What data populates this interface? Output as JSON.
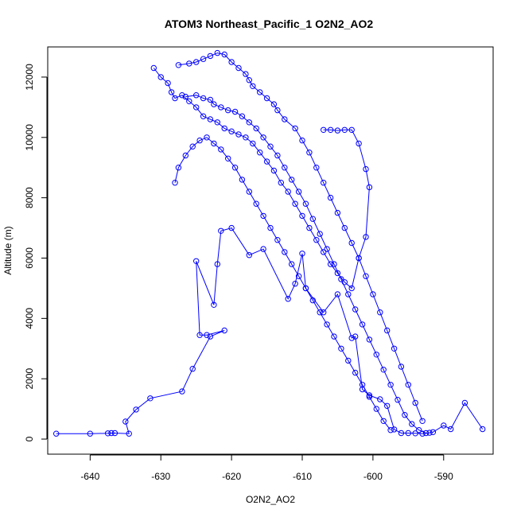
{
  "chart_data": {
    "type": "line",
    "title": "ATOM3 Northeast_Pacific_1 O2N2_AO2",
    "xlabel": "O2N2_AO2",
    "ylabel": "Altitude (m)",
    "xlim": [
      -646,
      -583
    ],
    "ylim": [
      -500,
      13000
    ],
    "xticks": [
      -640,
      -630,
      -620,
      -610,
      -600,
      -590
    ],
    "yticks": [
      0,
      2000,
      4000,
      6000,
      8000,
      10000,
      12000
    ],
    "grid": false,
    "legend": "none",
    "series": [
      {
        "color": "#0000ff",
        "marker": "open-circle",
        "x": [
          -644.8,
          -640.0,
          -637.5,
          -637.0,
          -636.5,
          -634.5,
          -635.0,
          -633.5,
          -631.5,
          -627.0,
          -625.5,
          -623.0,
          -621.0,
          -623.5,
          -624.5,
          -625.0,
          -622.5,
          -622.0,
          -621.5,
          -620.0,
          -617.5,
          -615.5,
          -612.0,
          -611.0,
          -610.0,
          -609.5,
          -607.0,
          -605.0,
          -603.0,
          -602.5,
          -601.5,
          -600.5,
          -599.0,
          -598.0,
          -597.0,
          -596.0,
          -595.0,
          -594.0,
          -593.0,
          -592.0,
          -591.5,
          -590.0,
          -589.0,
          -587.0,
          -584.5
        ],
        "y": [
          180,
          180,
          190,
          200,
          200,
          180,
          580,
          980,
          1350,
          1580,
          2330,
          3400,
          3600,
          3450,
          3450,
          5900,
          4450,
          5800,
          6900,
          7000,
          6100,
          6300,
          4650,
          5150,
          6150,
          5000,
          4200,
          4800,
          3350,
          3400,
          1650,
          1450,
          1320,
          1100,
          320,
          200,
          200,
          190,
          180,
          210,
          230,
          450,
          330,
          1200,
          330
        ]
      },
      {
        "color": "#0000ff",
        "marker": "open-circle",
        "x": [
          -631.0,
          -630.0,
          -629.0,
          -628.5,
          -628.0,
          -627.0,
          -626.0,
          -625.0,
          -624.0,
          -623.0,
          -622.0,
          -621.0,
          -620.0,
          -619.0,
          -618.0,
          -617.0,
          -616.0,
          -615.0,
          -614.0,
          -613.0,
          -612.0,
          -611.0,
          -610.0,
          -609.0,
          -608.0,
          -607.0,
          -606.0,
          -605.0,
          -604.0,
          -603.0,
          -602.0,
          -601.0,
          -600.5,
          -601.0,
          -602.0,
          -603.0,
          -604.0,
          -605.0,
          -606.0,
          -607.0
        ],
        "y": [
          12300,
          12000,
          11800,
          11500,
          11300,
          11400,
          11200,
          11000,
          10700,
          10600,
          10500,
          10300,
          10200,
          10100,
          10000,
          9800,
          9500,
          9200,
          8900,
          8500,
          8200,
          7800,
          7400,
          7000,
          6600,
          6200,
          5800,
          5500,
          5200,
          5000,
          6000,
          6700,
          8350,
          8950,
          9800,
          10250,
          10250,
          10230,
          10250,
          10250
        ]
      },
      {
        "color": "#0000ff",
        "marker": "open-circle",
        "x": [
          -627.5,
          -626.0,
          -625.0,
          -624.0,
          -623.0,
          -622.0,
          -621.0,
          -620.0,
          -619.0,
          -618.0,
          -617.5,
          -617.0,
          -616.0,
          -615.0,
          -614.0,
          -613.5,
          -612.5,
          -611.0,
          -610.0,
          -609.0,
          -608.0,
          -607.0,
          -606.0,
          -605.0,
          -604.0,
          -603.0,
          -602.0,
          -601.0,
          -600.0,
          -599.0,
          -598.0,
          -597.0,
          -596.0,
          -595.0,
          -594.0,
          -593.0
        ],
        "y": [
          12400,
          12450,
          12500,
          12600,
          12700,
          12800,
          12750,
          12500,
          12300,
          12100,
          11900,
          11700,
          11500,
          11300,
          11100,
          10900,
          10600,
          10300,
          9900,
          9500,
          9000,
          8500,
          8000,
          7500,
          7000,
          6500,
          6000,
          5400,
          4800,
          4200,
          3600,
          3000,
          2400,
          1800,
          1200,
          600
        ]
      },
      {
        "color": "#0000ff",
        "marker": "open-circle",
        "x": [
          -626.5,
          -625.0,
          -624.0,
          -623.0,
          -622.5,
          -621.5,
          -620.5,
          -619.5,
          -618.5,
          -617.5,
          -616.5,
          -615.5,
          -614.5,
          -613.5,
          -612.5,
          -611.5,
          -610.5,
          -609.5,
          -608.5,
          -607.5,
          -606.5,
          -605.5,
          -604.5,
          -603.5,
          -602.5,
          -601.5,
          -600.5,
          -599.5,
          -598.5,
          -597.5,
          -596.5,
          -595.5,
          -594.5,
          -593.5,
          -592.5
        ],
        "y": [
          11350,
          11400,
          11300,
          11250,
          11100,
          11000,
          10900,
          10850,
          10700,
          10500,
          10300,
          10000,
          9700,
          9400,
          9000,
          8600,
          8200,
          7800,
          7300,
          6800,
          6300,
          5800,
          5300,
          4800,
          4300,
          3800,
          3300,
          2800,
          2300,
          1800,
          1300,
          800,
          500,
          300,
          200
        ]
      },
      {
        "color": "#0000ff",
        "marker": "open-circle",
        "x": [
          -628.0,
          -627.5,
          -626.5,
          -625.5,
          -624.5,
          -623.5,
          -622.5,
          -621.5,
          -620.5,
          -619.5,
          -618.5,
          -617.5,
          -616.5,
          -615.5,
          -614.5,
          -613.5,
          -612.5,
          -611.5,
          -610.5,
          -609.5,
          -608.5,
          -607.5,
          -606.5,
          -605.5,
          -604.5,
          -603.5,
          -602.5,
          -601.5,
          -600.5,
          -599.5,
          -598.5,
          -597.5
        ],
        "y": [
          8500,
          9000,
          9400,
          9700,
          9900,
          10000,
          9800,
          9600,
          9300,
          9000,
          8600,
          8200,
          7800,
          7400,
          7000,
          6600,
          6200,
          5800,
          5400,
          5000,
          4600,
          4200,
          3800,
          3400,
          3000,
          2600,
          2200,
          1800,
          1400,
          1000,
          600,
          300
        ]
      }
    ]
  }
}
